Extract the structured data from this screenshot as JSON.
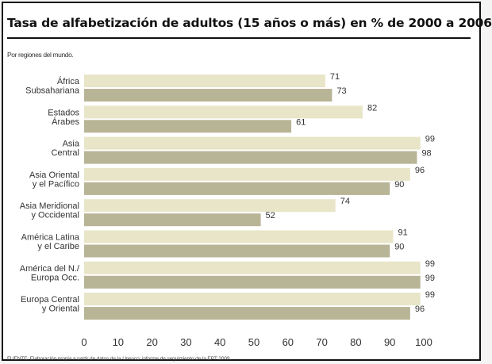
{
  "header": {
    "title": "Tasa de alfabetización de adultos (15 años o más) en % de 2000 a 2006",
    "subtitle": "Por regiones del mundo.",
    "source": "FUENTE: Elaboración propia a partir de datos de la Unesco: informe de seguimiento de la EPT 2009."
  },
  "colors": {
    "series_a": "#e8e5c8",
    "series_b": "#b8b496"
  },
  "chart_data": {
    "type": "bar",
    "orientation": "horizontal",
    "title": "Tasa de alfabetización de adultos (15 años o más) en % de 2000 a 2006",
    "subtitle": "Por regiones del mundo.",
    "xlabel": "",
    "ylabel": "",
    "xlim": [
      0,
      100
    ],
    "ticks": [
      0,
      10,
      20,
      30,
      40,
      50,
      60,
      70,
      80,
      90,
      100
    ],
    "grid": false,
    "legend": "none",
    "categories": [
      [
        "África",
        "Subsahariana"
      ],
      [
        "Estados",
        "Árabes"
      ],
      [
        "Asia",
        "Central"
      ],
      [
        "Asia Oriental",
        "y el Pacífico"
      ],
      [
        "Asia Meridional",
        "y Occidental"
      ],
      [
        "América Latina",
        "y el Caribe"
      ],
      [
        "América del N./",
        "Europa Occ."
      ],
      [
        "Europa Central",
        "y Oriental"
      ]
    ],
    "series": [
      {
        "values": [
          71,
          82,
          99,
          96,
          74,
          91,
          99,
          99
        ]
      },
      {
        "values": [
          73,
          61,
          98,
          90,
          52,
          90,
          99,
          96
        ]
      }
    ]
  }
}
